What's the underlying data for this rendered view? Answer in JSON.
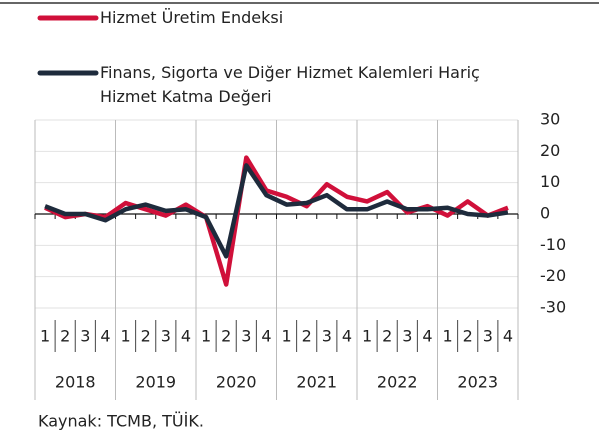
{
  "chart_data": {
    "type": "line",
    "categories": [
      "1",
      "2",
      "3",
      "4",
      "1",
      "2",
      "3",
      "4",
      "1",
      "2",
      "3",
      "4",
      "1",
      "2",
      "3",
      "4",
      "1",
      "2",
      "3",
      "4",
      "1",
      "2",
      "3",
      "4"
    ],
    "year_groups": [
      "2018",
      "2019",
      "2020",
      "2021",
      "2022",
      "2023"
    ],
    "series": [
      {
        "name": "Hizmet Üretim Endeksi",
        "color": "#d0103a",
        "values": [
          2,
          -1,
          0,
          -1,
          3.5,
          1.5,
          -0.5,
          3,
          -1,
          -22.5,
          18,
          7.5,
          5.5,
          2.5,
          9.5,
          5.5,
          4,
          7,
          0.5,
          2.5,
          -0.5,
          4,
          -0.5,
          2
        ]
      },
      {
        "name": "Finans, Sigorta ve Diğer Hizmet Kalemleri Hariç\nHizmet Katma Değeri",
        "color": "#1e2b3c",
        "values": [
          2.5,
          0,
          0,
          -2,
          1.5,
          3,
          1,
          1.5,
          -1,
          -13.5,
          15.5,
          6,
          3,
          3.5,
          6,
          1.5,
          1.5,
          4,
          1.5,
          1.5,
          2,
          0,
          -0.5,
          0.5
        ]
      }
    ],
    "ylim": [
      -30,
      30
    ],
    "yticks": [
      30,
      20,
      10,
      0,
      -10,
      -20,
      -30
    ],
    "grid": true,
    "source": "Kaynak: TCMB, TÜİK."
  }
}
